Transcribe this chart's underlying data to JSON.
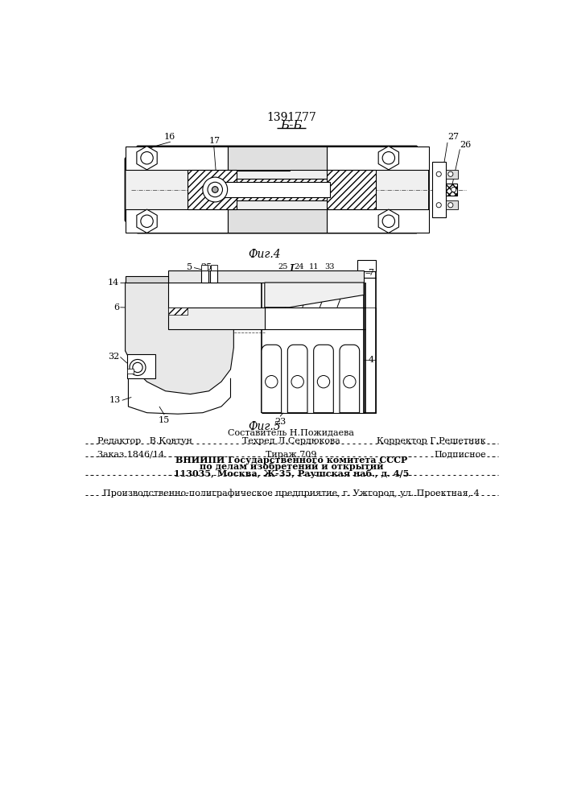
{
  "patent_number": "1391777",
  "fig4_label": "Б-Б",
  "fig4_caption": "Фиг.4",
  "fig5_label": "I",
  "fig5_caption": "Фиг.5",
  "footer_sestavitel": "Составитель Н.Пожидаева",
  "footer_redaktor": "Редактор   В.Ковтун",
  "footer_tehred": "Техред Л.Сердюкова",
  "footer_korrektor": "Корректор Г.Решетник",
  "footer_zakaz": "Заказ 1846/14",
  "footer_tirazh": "Тираж 709",
  "footer_podpisnoe": "Подписное",
  "footer_vnipi1": "ВНИИПИ Государственного комитета СССР",
  "footer_vnipi2": "по делам изобретений и открытий",
  "footer_vnipi3": "113035, Москва, Ж-35, Раушская наб., д. 4/5",
  "footer_prod": "Производственно-полиграфическое предприятие, г. Ужгород, ул. Проектная, 4",
  "bg_color": "#ffffff",
  "dc": "#000000"
}
